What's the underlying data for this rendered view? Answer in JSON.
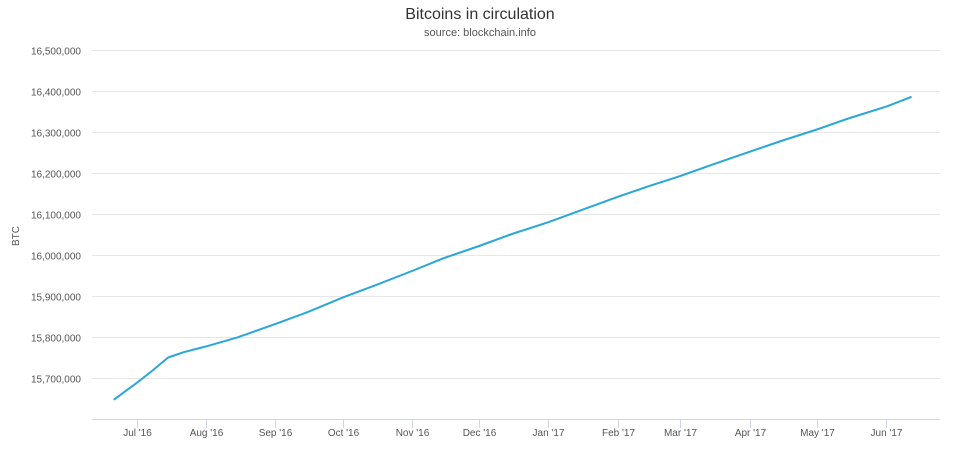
{
  "colors": {
    "line": "#2aa6d9",
    "grid": "#e6e6e6",
    "axis": "#ccd6eb",
    "text": "#555555"
  },
  "chart_data": {
    "type": "line",
    "title": "Bitcoins in circulation",
    "subtitle": "source: blockchain.info",
    "xlabel": "",
    "ylabel": "BTC",
    "ylim": [
      15600000,
      16500000
    ],
    "yticks": [
      15700000,
      15800000,
      15900000,
      16000000,
      16100000,
      16200000,
      16300000,
      16400000,
      16500000
    ],
    "ytick_labels": [
      "15,700,000",
      "15,800,000",
      "15,900,000",
      "16,000,000",
      "16,100,000",
      "16,200,000",
      "16,300,000",
      "16,400,000",
      "16,500,000"
    ],
    "xlim": [
      "2016-06-11",
      "2017-06-25"
    ],
    "xticks": [
      "2016-07-01",
      "2016-08-01",
      "2016-09-01",
      "2016-10-01",
      "2016-11-01",
      "2016-12-01",
      "2017-01-01",
      "2017-02-01",
      "2017-03-01",
      "2017-04-01",
      "2017-05-01",
      "2017-06-01"
    ],
    "xtick_labels": [
      "Jul '16",
      "Aug '16",
      "Sep '16",
      "Oct '16",
      "Nov '16",
      "Dec '16",
      "Jan '17",
      "Feb '17",
      "Mar '17",
      "Apr '17",
      "May '17",
      "Jun '17"
    ],
    "grid": true,
    "series": [
      {
        "name": "",
        "points": [
          [
            "2016-06-21",
            15648000
          ],
          [
            "2016-07-01",
            15688000
          ],
          [
            "2016-07-08",
            15718000
          ],
          [
            "2016-07-15",
            15750000
          ],
          [
            "2016-07-22",
            15763000
          ],
          [
            "2016-08-01",
            15777000
          ],
          [
            "2016-08-15",
            15799000
          ],
          [
            "2016-09-01",
            15832000
          ],
          [
            "2016-09-15",
            15860000
          ],
          [
            "2016-10-01",
            15896000
          ],
          [
            "2016-10-15",
            15925000
          ],
          [
            "2016-11-01",
            15961000
          ],
          [
            "2016-11-15",
            15992000
          ],
          [
            "2016-12-01",
            16022000
          ],
          [
            "2016-12-15",
            16050000
          ],
          [
            "2017-01-01",
            16080000
          ],
          [
            "2017-01-15",
            16108000
          ],
          [
            "2017-02-01",
            16142000
          ],
          [
            "2017-02-15",
            16168000
          ],
          [
            "2017-03-01",
            16193000
          ],
          [
            "2017-03-15",
            16220000
          ],
          [
            "2017-04-01",
            16252000
          ],
          [
            "2017-04-15",
            16278000
          ],
          [
            "2017-05-01",
            16306000
          ],
          [
            "2017-05-15",
            16333000
          ],
          [
            "2017-06-01",
            16362000
          ],
          [
            "2017-06-12",
            16385000
          ]
        ]
      }
    ]
  }
}
